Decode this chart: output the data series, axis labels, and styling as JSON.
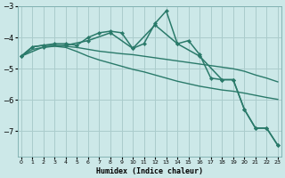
{
  "title": "",
  "xlabel": "Humidex (Indice chaleur)",
  "bg_color": "#cce8e8",
  "grid_color": "#aacccc",
  "line_color": "#2a7a6a",
  "x_ticks": [
    0,
    1,
    2,
    3,
    4,
    5,
    6,
    7,
    8,
    9,
    10,
    11,
    12,
    13,
    14,
    15,
    16,
    17,
    18,
    19,
    20,
    21,
    22,
    23
  ],
  "y_ticks": [
    -7,
    -6,
    -5,
    -4,
    -3
  ],
  "ylim": [
    -7.8,
    -3.1
  ],
  "xlim": [
    -0.3,
    23.3
  ],
  "series": [
    {
      "x": [
        0,
        1,
        2,
        3,
        4,
        5,
        6,
        7,
        8,
        9,
        10,
        11,
        12,
        13,
        14,
        15,
        16,
        17,
        18,
        19,
        20,
        21,
        22,
        23
      ],
      "y": [
        -4.6,
        -4.3,
        -4.25,
        -4.2,
        -4.2,
        -4.25,
        -4.0,
        -3.85,
        -3.8,
        -3.85,
        -4.35,
        -4.2,
        -3.55,
        -3.15,
        -4.2,
        -4.1,
        -4.55,
        -5.3,
        -5.35,
        -5.35,
        -6.3,
        -6.9,
        -6.9,
        -7.45
      ],
      "with_markers": true,
      "linewidth": 1.1
    },
    {
      "x": [
        0,
        1,
        2,
        3,
        4,
        5,
        6,
        7,
        8,
        9,
        10,
        11,
        12,
        13,
        14,
        15,
        16,
        17,
        18,
        19,
        20,
        21,
        22,
        23
      ],
      "y": [
        -4.6,
        -4.3,
        -4.25,
        -4.25,
        -4.28,
        -4.32,
        -4.38,
        -4.44,
        -4.48,
        -4.52,
        -4.55,
        -4.6,
        -4.65,
        -4.7,
        -4.75,
        -4.8,
        -4.85,
        -4.9,
        -4.95,
        -5.0,
        -5.08,
        -5.2,
        -5.3,
        -5.42
      ],
      "with_markers": false,
      "linewidth": 1.0
    },
    {
      "x": [
        0,
        1,
        2,
        3,
        4,
        5,
        6,
        7,
        8,
        9,
        10,
        11,
        12,
        13,
        14,
        15,
        16,
        17,
        18,
        19,
        20,
        21,
        22,
        23
      ],
      "y": [
        -4.6,
        -4.38,
        -4.32,
        -4.28,
        -4.32,
        -4.45,
        -4.6,
        -4.72,
        -4.82,
        -4.92,
        -5.02,
        -5.1,
        -5.2,
        -5.3,
        -5.4,
        -5.48,
        -5.56,
        -5.62,
        -5.68,
        -5.72,
        -5.78,
        -5.85,
        -5.92,
        -5.98
      ],
      "with_markers": false,
      "linewidth": 1.0
    },
    {
      "x": [
        0,
        1,
        2,
        3,
        4,
        5,
        6,
        7,
        8,
        9,
        10,
        11,
        12,
        13,
        14,
        15,
        16,
        17,
        18,
        19,
        20,
        21,
        22,
        23
      ],
      "y": [
        -4.6,
        -4.3,
        -4.25,
        -4.2,
        -4.2,
        -4.3,
        -4.45,
        -4.6,
        -3.85,
        -4.2,
        -4.55,
        -4.8,
        -3.6,
        -4.3,
        -4.5,
        -4.3,
        -4.6,
        -5.3,
        -5.35,
        -5.55,
        -6.35,
        -6.95,
        -6.95,
        -7.45
      ],
      "with_markers": false,
      "linewidth": 1.1
    }
  ],
  "sparse_series": {
    "x": [
      0,
      2,
      4,
      6,
      8,
      10,
      12,
      14,
      16,
      18,
      19,
      20,
      21,
      22,
      23
    ],
    "y": [
      -4.6,
      -4.3,
      -4.25,
      -4.1,
      -3.85,
      -4.35,
      -3.6,
      -4.2,
      -4.6,
      -5.35,
      -5.35,
      -6.3,
      -6.9,
      -6.9,
      -7.45
    ],
    "linewidth": 1.1
  }
}
